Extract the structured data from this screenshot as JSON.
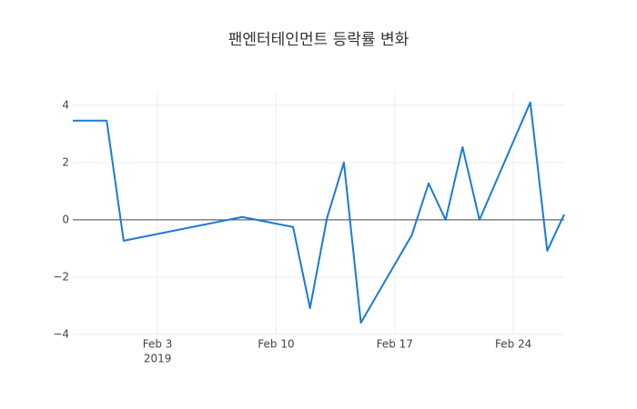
{
  "chart_data": {
    "type": "line",
    "title": "팬엔터테인먼트 등락률 변화",
    "x": [
      "2019-01-29",
      "2019-01-31",
      "2019-02-01",
      "2019-02-08",
      "2019-02-11",
      "2019-02-12",
      "2019-02-13",
      "2019-02-14",
      "2019-02-15",
      "2019-02-18",
      "2019-02-19",
      "2019-02-20",
      "2019-02-21",
      "2019-02-22",
      "2019-02-25",
      "2019-02-26",
      "2019-02-27"
    ],
    "series": [
      {
        "color": "#1a7ad9",
        "values": [
          3.46,
          3.46,
          -0.73,
          0.1,
          -0.25,
          -3.08,
          0.06,
          2.0,
          -3.59,
          -0.54,
          1.27,
          0.0,
          2.54,
          0.0,
          4.1,
          -1.08,
          0.19
        ]
      }
    ],
    "xlim": [
      "2019-01-29",
      "2019-02-27"
    ],
    "xticks": [
      {
        "value": "2019-02-03",
        "label": "Feb 3"
      },
      {
        "value": "2019-02-10",
        "label": "Feb 10"
      },
      {
        "value": "2019-02-17",
        "label": "Feb 17"
      },
      {
        "value": "2019-02-24",
        "label": "Feb 24"
      }
    ],
    "x_year": "2019",
    "ylim": [
      -4,
      4.5
    ],
    "yticks": [
      4,
      2,
      0,
      {
        "value": -2,
        "label": "−2"
      },
      {
        "value": -4,
        "label": "−4"
      }
    ],
    "grid": true
  }
}
